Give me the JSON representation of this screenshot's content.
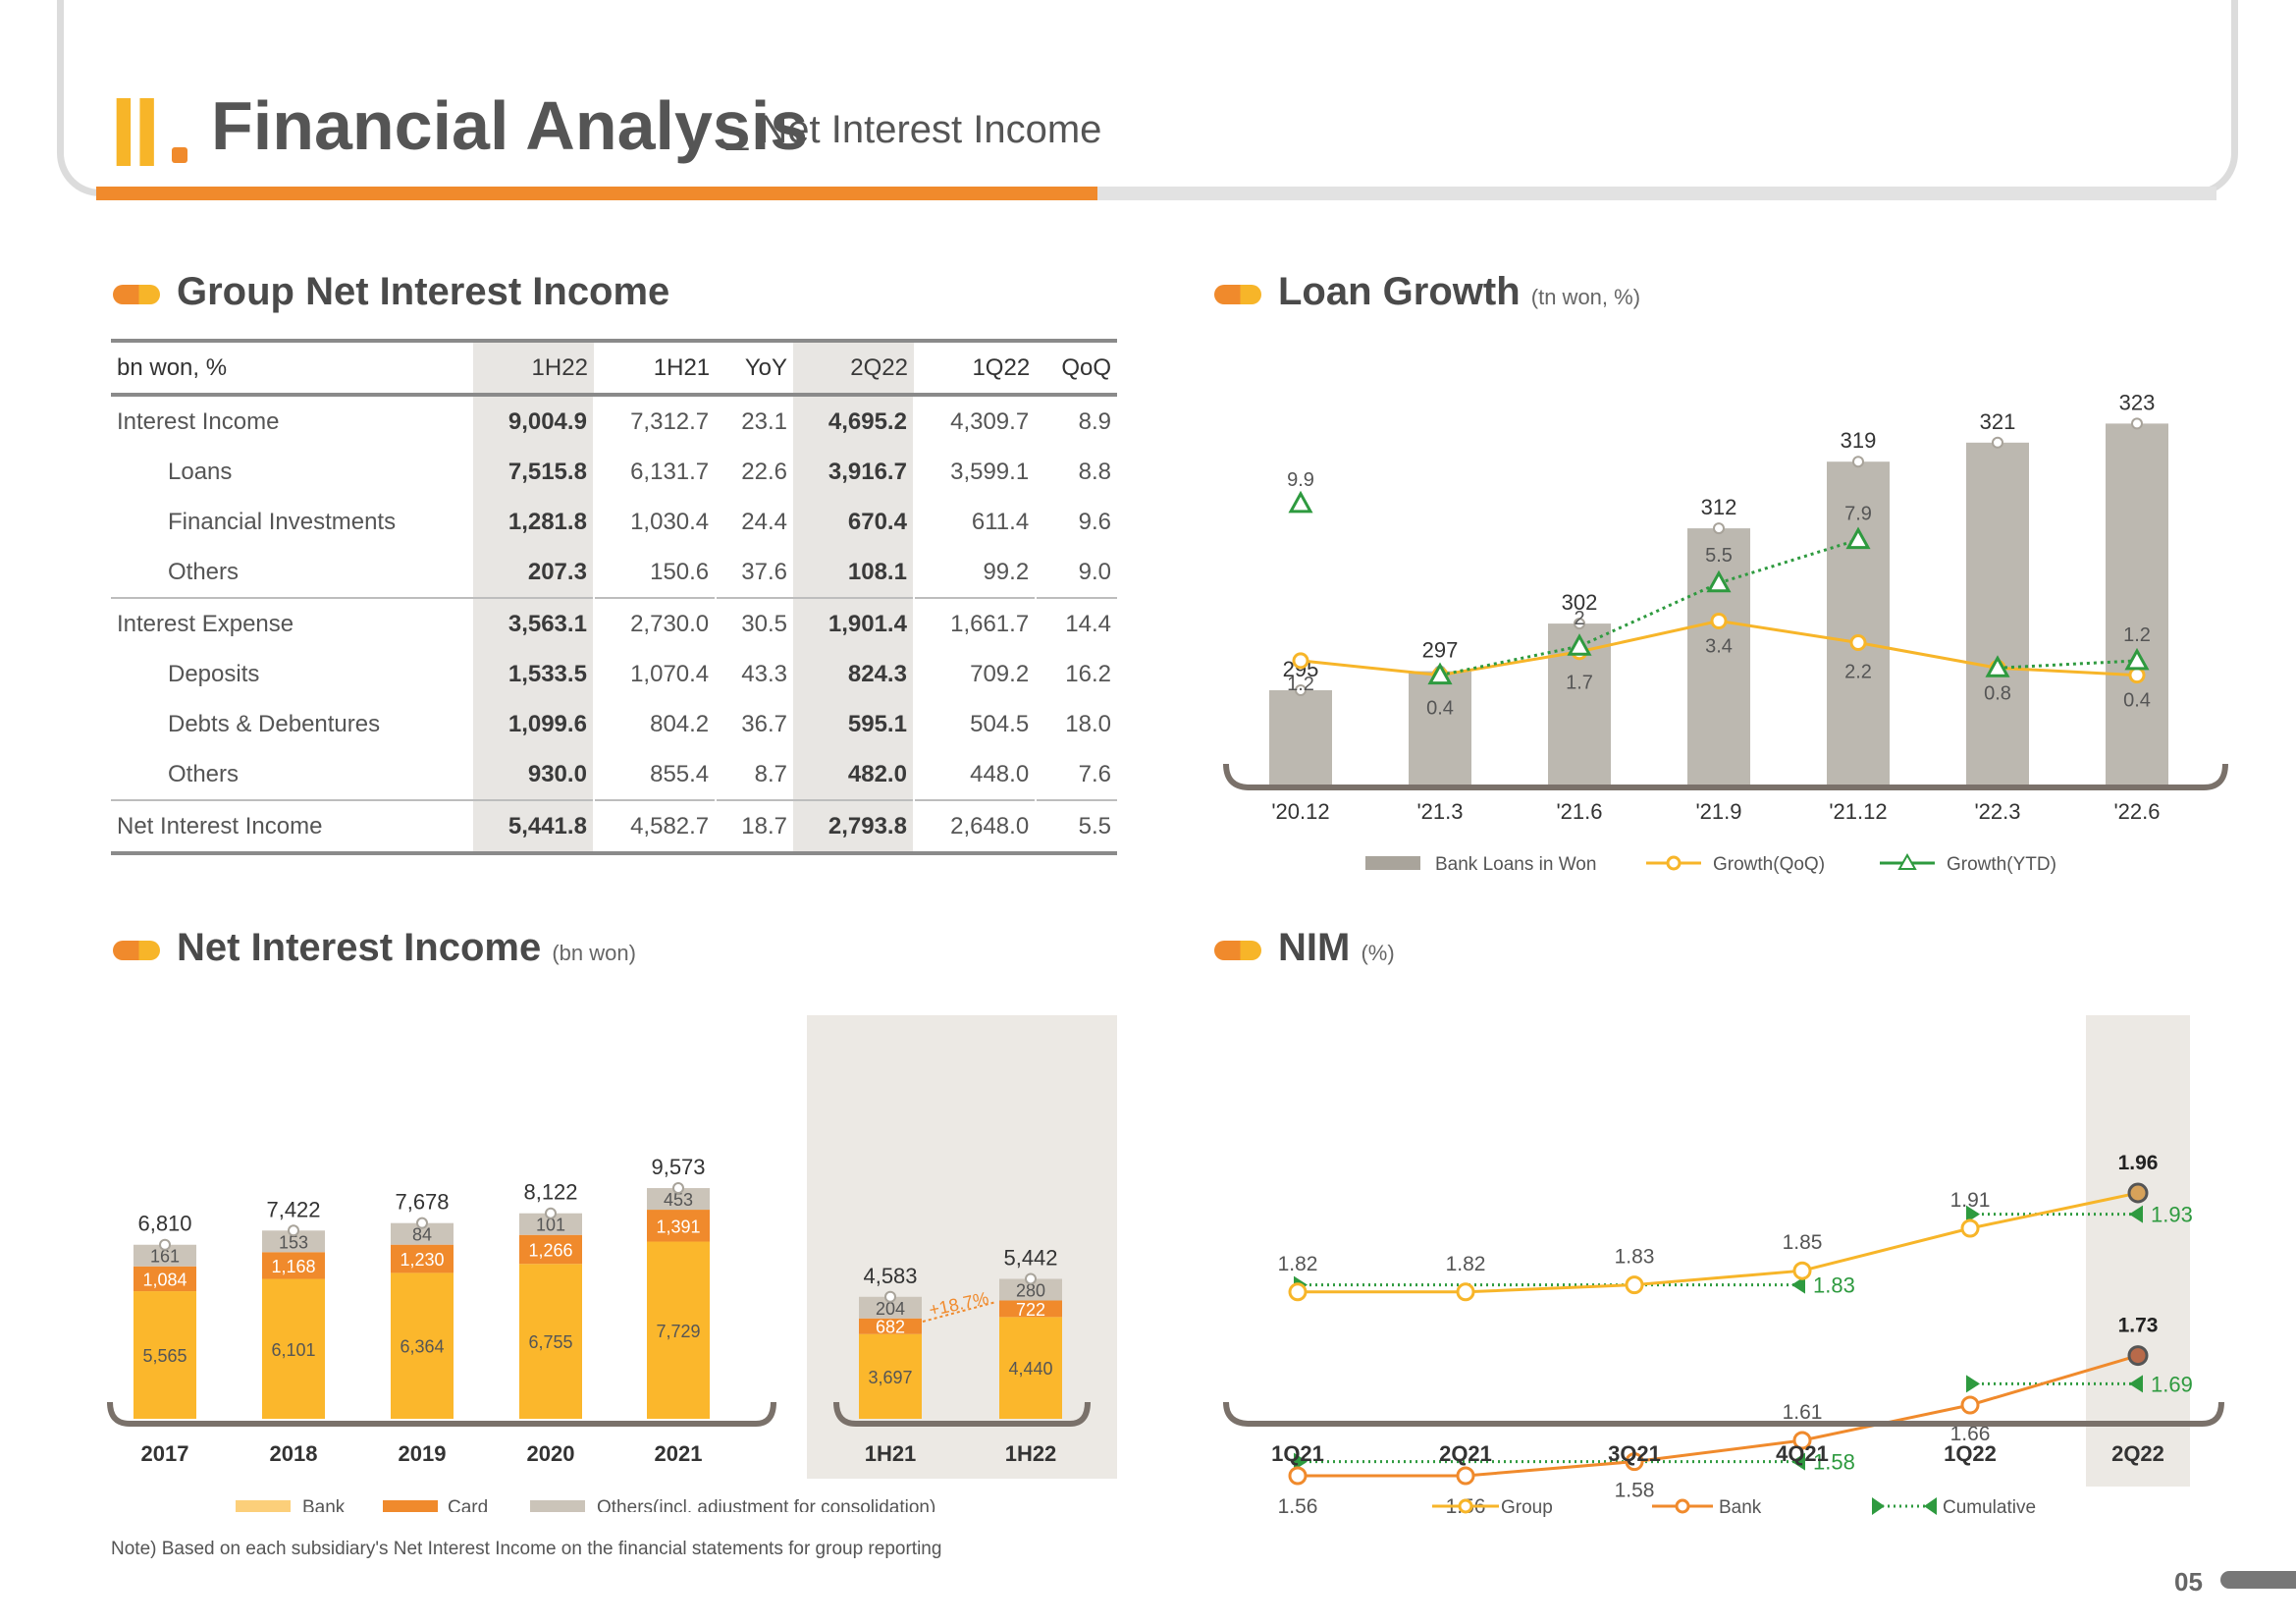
{
  "header": {
    "roman": "II",
    "title": "Financial Analysis",
    "dash": "_",
    "subtitle": "Net Interest Income"
  },
  "page_number": "05",
  "note": "Note) Based on each subsidiary's Net Interest Income on the financial statements for group reporting",
  "colors": {
    "orange": "#f08a2c",
    "yellow": "#f7b529",
    "gray": "#b8b4ad",
    "green": "#2e9a3f",
    "others": "#cbc4b9"
  },
  "table": {
    "title": "Group Net Interest Income",
    "headers": [
      "bn won, %",
      "1H22",
      "1H21",
      "YoY",
      "2Q22",
      "1Q22",
      "QoQ"
    ],
    "rows": [
      {
        "label": "Interest Income",
        "sub": false,
        "values": [
          "9,004.9",
          "7,312.7",
          "23.1",
          "4,695.2",
          "4,309.7",
          "8.9"
        ]
      },
      {
        "label": "Loans",
        "sub": true,
        "values": [
          "7,515.8",
          "6,131.7",
          "22.6",
          "3,916.7",
          "3,599.1",
          "8.8"
        ]
      },
      {
        "label": "Financial Investments",
        "sub": true,
        "values": [
          "1,281.8",
          "1,030.4",
          "24.4",
          "670.4",
          "611.4",
          "9.6"
        ]
      },
      {
        "label": "Others",
        "sub": true,
        "values": [
          "207.3",
          "150.6",
          "37.6",
          "108.1",
          "99.2",
          "9.0"
        ]
      },
      {
        "label": "Interest Expense",
        "sub": false,
        "values": [
          "3,563.1",
          "2,730.0",
          "30.5",
          "1,901.4",
          "1,661.7",
          "14.4"
        ]
      },
      {
        "label": "Deposits",
        "sub": true,
        "values": [
          "1,533.5",
          "1,070.4",
          "43.3",
          "824.3",
          "709.2",
          "16.2"
        ]
      },
      {
        "label": "Debts & Debentures",
        "sub": true,
        "values": [
          "1,099.6",
          "804.2",
          "36.7",
          "595.1",
          "504.5",
          "18.0"
        ]
      },
      {
        "label": "Others",
        "sub": true,
        "values": [
          "930.0",
          "855.4",
          "8.7",
          "482.0",
          "448.0",
          "7.6"
        ]
      },
      {
        "label": "Net Interest Income",
        "sub": false,
        "values": [
          "5,441.8",
          "4,582.7",
          "18.7",
          "2,793.8",
          "2,648.0",
          "5.5"
        ]
      }
    ]
  },
  "loan": {
    "title": "Loan Growth",
    "unit": "(tn won, %)",
    "legend": {
      "bars": "Bank Loans in Won",
      "qoq": "Growth(QoQ)",
      "ytd": "Growth(YTD)"
    }
  },
  "nii": {
    "title": "Net Interest Income",
    "unit": "(bn won)",
    "growth_label": "+18.7%",
    "legend": {
      "bank": "Bank",
      "card": "Card",
      "others": "Others(incl. adjustment for consolidation)"
    }
  },
  "nim": {
    "title": "NIM",
    "unit": "(%)",
    "legend": {
      "group": "Group",
      "bank": "Bank",
      "cumulative": "Cumulative"
    }
  },
  "chart_data": [
    {
      "type": "bar",
      "title": "Loan Growth",
      "categories": [
        "'20.12",
        "'21.3",
        "'21.6",
        "'21.9",
        "'21.12",
        "'22.3",
        "'22.6"
      ],
      "series": [
        {
          "name": "Bank Loans in Won",
          "type": "bar",
          "values": [
            295,
            297,
            302,
            312,
            319,
            321,
            323
          ]
        },
        {
          "name": "Growth(QoQ)",
          "type": "line",
          "values": [
            1.2,
            0.4,
            1.7,
            3.4,
            2.2,
            0.8,
            0.4
          ]
        },
        {
          "name": "Growth(YTD)",
          "type": "line",
          "values": [
            9.9,
            0.4,
            2.0,
            5.5,
            7.9,
            0.8,
            1.2
          ]
        }
      ]
    },
    {
      "type": "bar",
      "stacked": true,
      "title": "Net Interest Income",
      "categories": [
        "2017",
        "2018",
        "2019",
        "2020",
        "2021"
      ],
      "totals": [
        "6,810",
        "7,422",
        "7,678",
        "8,122",
        "9,573"
      ],
      "series": [
        {
          "name": "Bank",
          "values": [
            5565,
            6101,
            6364,
            6755,
            7729
          ],
          "labels": [
            "5,565",
            "6,101",
            "6,364",
            "6,755",
            "7,729"
          ]
        },
        {
          "name": "Card",
          "values": [
            1084,
            1168,
            1230,
            1266,
            1391
          ],
          "labels": [
            "1,084",
            "1,168",
            "1,230",
            "1,266",
            "1,391"
          ]
        },
        {
          "name": "Others(incl. adjustment for consolidation)",
          "values": [
            161,
            153,
            84,
            101,
            453
          ],
          "labels": [
            "161",
            "153",
            "84",
            "101",
            "453"
          ]
        }
      ]
    },
    {
      "type": "bar",
      "stacked": true,
      "categories": [
        "1H21",
        "1H22"
      ],
      "totals": [
        "4,583",
        "5,442"
      ],
      "series": [
        {
          "name": "Bank",
          "values": [
            3697,
            4440
          ],
          "labels": [
            "3,697",
            "4,440"
          ]
        },
        {
          "name": "Card",
          "values": [
            682,
            722
          ],
          "labels": [
            "682",
            "722"
          ]
        },
        {
          "name": "Others(incl. adjustment for consolidation)",
          "values": [
            204,
            280
          ],
          "labels": [
            "204",
            "280"
          ]
        }
      ]
    },
    {
      "type": "line",
      "title": "NIM",
      "categories": [
        "1Q21",
        "2Q21",
        "3Q21",
        "4Q21",
        "1Q22",
        "2Q22"
      ],
      "series": [
        {
          "name": "Group",
          "values": [
            1.82,
            1.82,
            1.83,
            1.85,
            1.91,
            1.96
          ],
          "labels": [
            "1.82",
            "1.82",
            "1.83",
            "1.85",
            "1.91",
            "1.96"
          ]
        },
        {
          "name": "Bank",
          "values": [
            1.56,
            1.56,
            1.58,
            1.61,
            1.66,
            1.73
          ],
          "labels": [
            "1.56",
            "1.56",
            "1.58",
            "1.61",
            "1.66",
            "1.73"
          ]
        }
      ],
      "cumulative": [
        {
          "value": 1.83,
          "label": "1.83"
        },
        {
          "value": 1.58,
          "label": "1.58"
        },
        {
          "value": 1.93,
          "label": "1.93"
        },
        {
          "value": 1.69,
          "label": "1.69"
        }
      ]
    }
  ]
}
